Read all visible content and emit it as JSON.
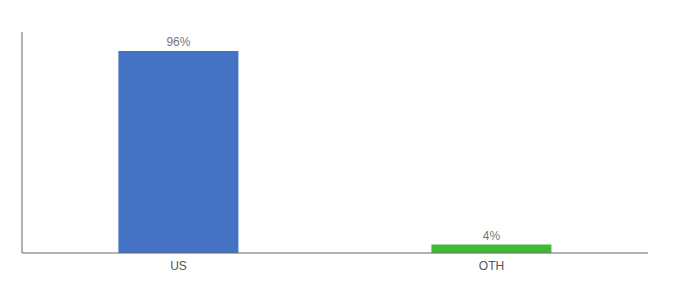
{
  "chart_data": {
    "type": "bar",
    "categories": [
      "US",
      "OTH"
    ],
    "values": [
      96,
      4
    ],
    "value_labels": [
      "96%",
      "4%"
    ],
    "colors": [
      "#4472c4",
      "#3dbb35"
    ],
    "ylim": [
      0,
      105
    ],
    "tick_labels": "x",
    "data_labels": true
  }
}
